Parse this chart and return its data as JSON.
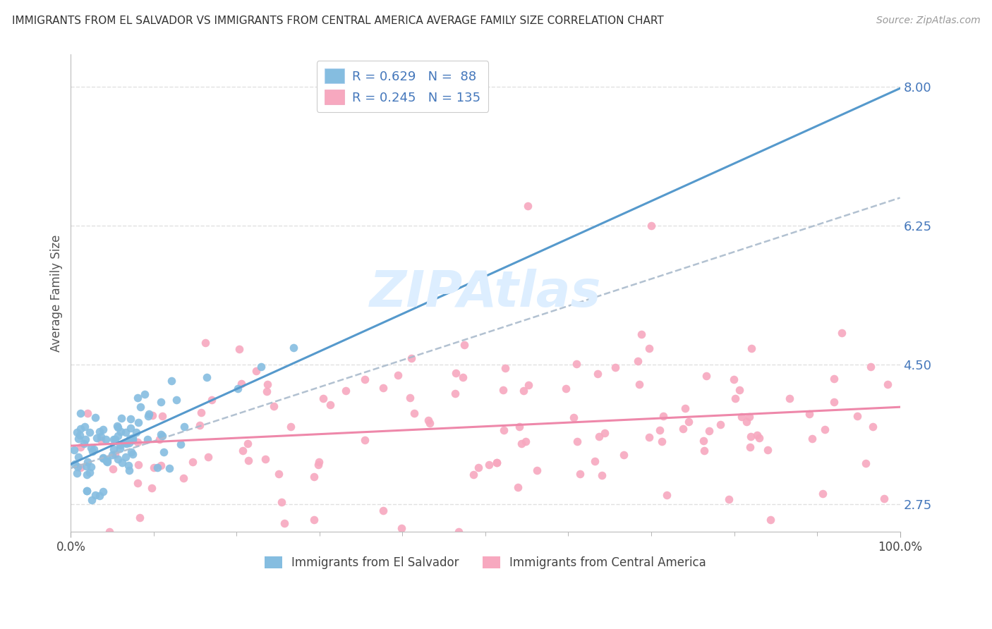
{
  "title": "IMMIGRANTS FROM EL SALVADOR VS IMMIGRANTS FROM CENTRAL AMERICA AVERAGE FAMILY SIZE CORRELATION CHART",
  "source": "Source: ZipAtlas.com",
  "ylabel": "Average Family Size",
  "xlim": [
    0,
    1.0
  ],
  "ylim": [
    2.4,
    8.4
  ],
  "yticks": [
    2.75,
    4.5,
    6.25,
    8.0
  ],
  "xticklabels": [
    "0.0%",
    "100.0%"
  ],
  "series1_label": "Immigrants from El Salvador",
  "series2_label": "Immigrants from Central America",
  "series1_color": "#85bde0",
  "series2_color": "#f7a8bf",
  "series1_trendline_color": "#5599cc",
  "series2_trendline_color": "#ee88aa",
  "dashed_line_color": "#aabbcc",
  "legend_text_color": "#4477bb",
  "source_color": "#999999",
  "title_color": "#333333",
  "background_color": "#ffffff",
  "grid_color": "#dddddd",
  "watermark_text": "ZIPAtlas",
  "watermark_color": "#ddeeff",
  "series1_R": 0.629,
  "series1_N": 88,
  "series2_R": 0.245,
  "series2_N": 135,
  "series1_seed": 42,
  "series2_seed": 99
}
